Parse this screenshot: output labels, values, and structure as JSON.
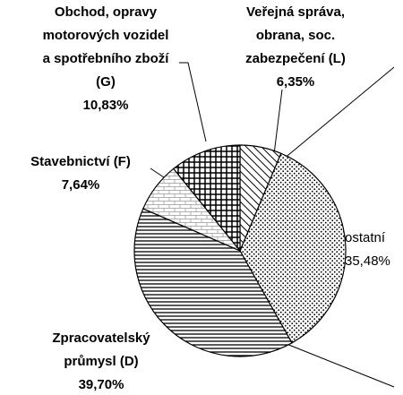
{
  "chart_data": {
    "type": "pie",
    "categories": [
      "Veřejná správa,\nobrana, soc.\nzabezpečení (L)",
      "ostatní",
      "Zpracovatelský\nprůmysl (D)",
      "Stavebnictví (F)",
      "Obchod, opravy\nmotorových vozidel\na spotřebního zboží\n(G)"
    ],
    "values": [
      6.35,
      35.48,
      39.7,
      7.64,
      10.83
    ],
    "value_labels": [
      "6,35%",
      "35,48%",
      "39,70%",
      "7,64%",
      "10,83%"
    ]
  }
}
